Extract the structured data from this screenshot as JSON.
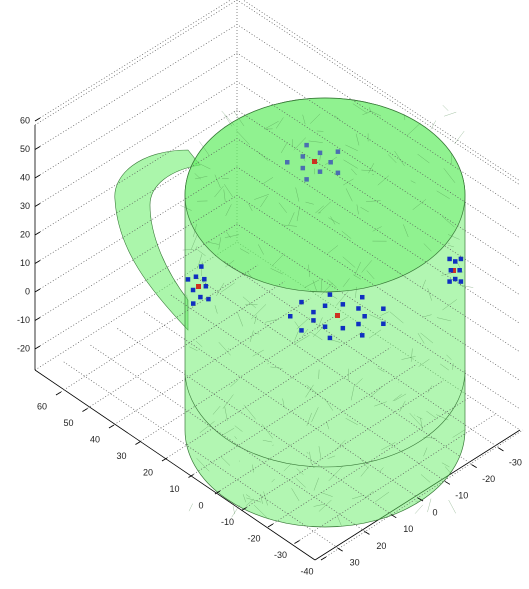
{
  "chart_data": {
    "type": "mesh3d",
    "zticks": [
      60,
      50,
      40,
      30,
      20,
      10,
      0,
      -10,
      -20
    ],
    "xticks": [
      60,
      50,
      40,
      30,
      20,
      10,
      0,
      -10,
      -20,
      -30,
      -40
    ],
    "yticks": [
      -30,
      -20,
      -10,
      0,
      10,
      20,
      30
    ],
    "grid": true,
    "color": "#66ee66"
  }
}
